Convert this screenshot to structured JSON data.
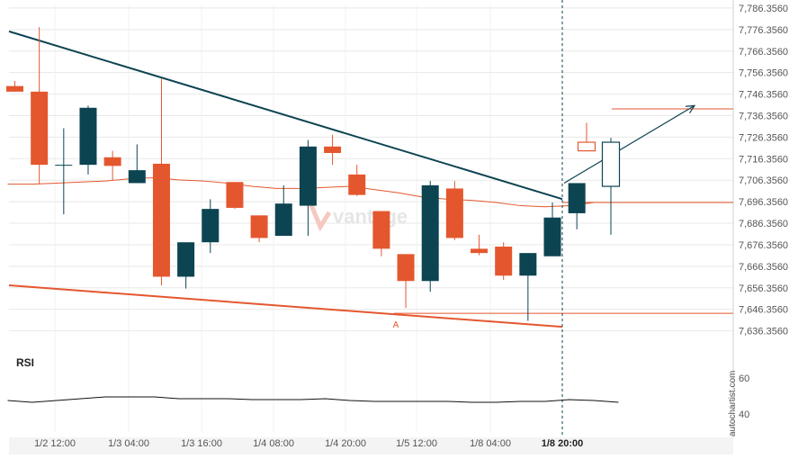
{
  "chart_data": {
    "type": "candlestick",
    "price_axis": {
      "ticks": [
        "7,786.3560",
        "7,776.3560",
        "7,766.3560",
        "7,756.3560",
        "7,746.3560",
        "7,736.3560",
        "7,726.3560",
        "7,716.3560",
        "7,706.3560",
        "7,696.3560",
        "7,686.3560",
        "7,676.3560",
        "7,666.3560",
        "7,656.3560",
        "7,646.3560",
        "7,636.3560"
      ],
      "range": [
        7632.0,
        7788.0
      ]
    },
    "time_axis": {
      "ticks": [
        "1/2 12:00",
        "1/3 04:00",
        "1/3 16:00",
        "1/4 08:00",
        "1/4 20:00",
        "1/5 12:00",
        "1/8 04:00",
        "1/8 20:00"
      ],
      "highlighted": "1/8 20:00"
    },
    "candles": [
      {
        "o": 7750.1,
        "h": 7752.5,
        "l": 7747.5,
        "c": 7747.5
      },
      {
        "o": 7747.5,
        "h": 7777.5,
        "l": 7704.5,
        "c": 7713.5
      },
      {
        "o": 7713.5,
        "h": 7730.5,
        "l": 7690.5,
        "c": 7713.5
      },
      {
        "o": 7713.5,
        "h": 7741.0,
        "l": 7709.0,
        "c": 7740.0
      },
      {
        "o": 7717.0,
        "h": 7720.0,
        "l": 7706.5,
        "c": 7713.0
      },
      {
        "o": 7705.0,
        "h": 7723.0,
        "l": 7705.0,
        "c": 7711.0
      },
      {
        "o": 7714.0,
        "h": 7753.5,
        "l": 7657.5,
        "c": 7661.5
      },
      {
        "o": 7661.5,
        "h": 7677.5,
        "l": 7656.0,
        "c": 7677.5
      },
      {
        "o": 7677.5,
        "h": 7697.5,
        "l": 7672.5,
        "c": 7693.0
      },
      {
        "o": 7705.5,
        "h": 7705.5,
        "l": 7693.0,
        "c": 7693.5
      },
      {
        "o": 7690.0,
        "h": 7690.0,
        "l": 7677.5,
        "c": 7679.5
      },
      {
        "o": 7680.5,
        "h": 7704.0,
        "l": 7680.5,
        "c": 7695.5
      },
      {
        "o": 7694.5,
        "h": 7725.0,
        "l": 7680.5,
        "c": 7722.0
      },
      {
        "o": 7722.0,
        "h": 7727.5,
        "l": 7713.5,
        "c": 7719.0
      },
      {
        "o": 7709.0,
        "h": 7713.5,
        "l": 7699.0,
        "c": 7699.5
      },
      {
        "o": 7692.0,
        "h": 7692.0,
        "l": 7671.0,
        "c": 7674.5
      },
      {
        "o": 7672.0,
        "h": 7672.0,
        "l": 7647.0,
        "c": 7659.5
      },
      {
        "o": 7659.5,
        "h": 7706.0,
        "l": 7654.5,
        "c": 7704.0
      },
      {
        "o": 7702.5,
        "h": 7706.0,
        "l": 7678.5,
        "c": 7679.5
      },
      {
        "o": 7674.5,
        "h": 7681.0,
        "l": 7671.5,
        "c": 7672.5
      },
      {
        "o": 7675.5,
        "h": 7677.5,
        "l": 7660.0,
        "c": 7662.0
      },
      {
        "o": 7662.0,
        "h": 7672.5,
        "l": 7641.0,
        "c": 7672.5
      },
      {
        "o": 7671.0,
        "h": 7696.0,
        "l": 7671.0,
        "c": 7689.0
      },
      {
        "o": 7691.0,
        "h": 7705.0,
        "l": 7683.5,
        "c": 7705.0
      }
    ],
    "forecast_candles": [
      {
        "o": 7724.0,
        "h": 7733.0,
        "l": 7720.0,
        "c": 7720.0
      },
      {
        "o": 7703.5,
        "h": 7726.0,
        "l": 7681.0,
        "c": 7724.0
      }
    ],
    "moving_average": [
      7704.5,
      7704.5,
      7705.0,
      7705.5,
      7706.0,
      7707.0,
      7707.5,
      7706.5,
      7706.0,
      7705.0,
      7703.5,
      7702.5,
      7702.5,
      7703.0,
      7703.5,
      7702.0,
      7700.5,
      7698.5,
      7697.5,
      7697.0,
      7696.0,
      7694.5,
      7694.0,
      7694.5,
      7696.0,
      7696.0
    ],
    "resistance_line": [
      7775.5,
      7697.6
    ],
    "support_line": [
      7657.5,
      7638.2
    ],
    "horizontal_levels": [
      7644.5,
      7696.0,
      7739.5
    ],
    "projection_target": 7741.0,
    "annotation_label": "A",
    "rsi": {
      "label": "RSI",
      "ticks": [
        "60",
        "40"
      ],
      "range": [
        30,
        75
      ],
      "values": [
        47.5,
        46.5,
        47.5,
        48.5,
        49.5,
        49.5,
        49.5,
        48.5,
        48.5,
        48.5,
        48.0,
        48.0,
        48.0,
        48.5,
        47.5,
        47.0,
        47.0,
        47.0,
        47.0,
        46.5,
        46.5,
        47.0,
        47.0,
        48.0,
        47.5,
        46.5
      ]
    },
    "watermark": "vantage",
    "side_label": "autochartist.com"
  },
  "colors": {
    "bull": "#0d4452",
    "bear": "#e4572e",
    "trendline": "#0d4452",
    "support": "#e4572e",
    "grid": "#e8e8e8",
    "axis_text": "#555555"
  }
}
